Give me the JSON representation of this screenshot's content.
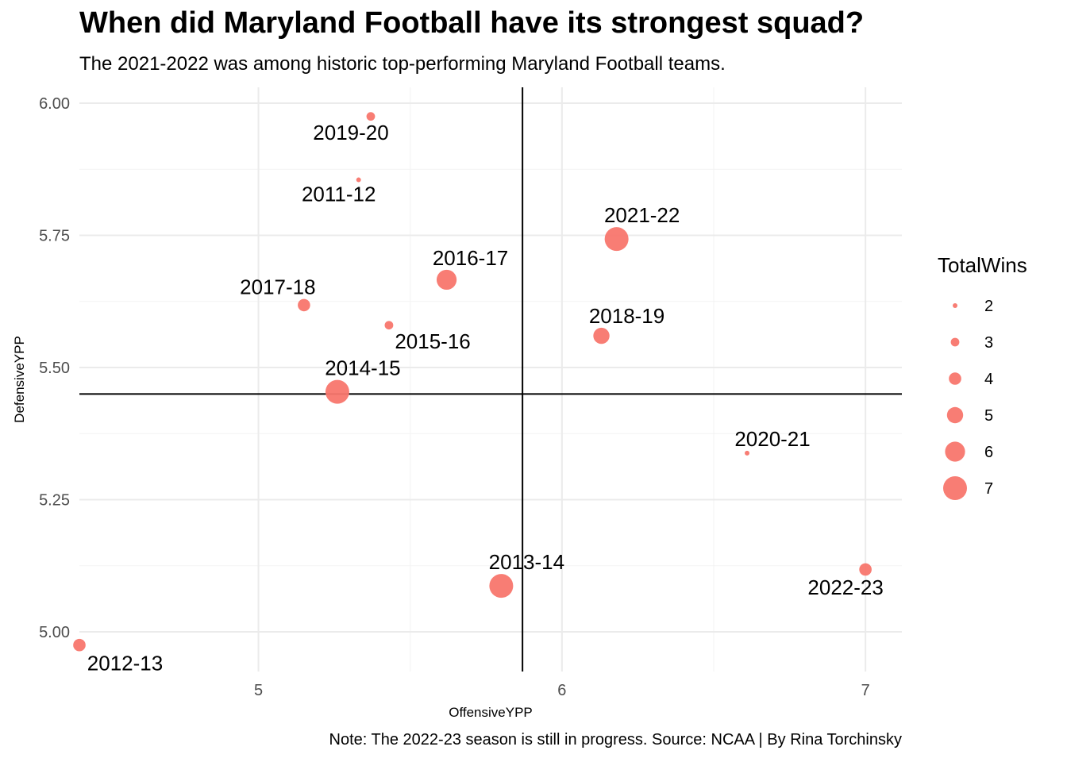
{
  "chart_data": {
    "type": "scatter",
    "title": "When did Maryland Football have its strongest squad?",
    "subtitle": "The 2021-2022 was among historic top-performing Maryland Football teams.",
    "caption": "Note: The 2022-23 season is still in progress. Source: NCAA | By Rina Torchinsky",
    "xlabel": "OffensiveYPP",
    "ylabel": "DefensiveYPP",
    "xlim": [
      4.41,
      7.12
    ],
    "ylim": [
      4.925,
      6.03
    ],
    "x_ticks": [
      5,
      6,
      7
    ],
    "x_tick_labels": [
      "5",
      "6",
      "7"
    ],
    "y_ticks": [
      5.0,
      5.25,
      5.5,
      5.75,
      6.0
    ],
    "y_tick_labels": [
      "5.00",
      "5.25",
      "5.50",
      "5.75",
      "6.00"
    ],
    "grid": true,
    "reference_lines": {
      "x": 5.87,
      "y": 5.45
    },
    "point_color": "#F8766D",
    "size_variable": "TotalWins",
    "legend": {
      "title": "TotalWins",
      "position": "right",
      "values": [
        2,
        3,
        4,
        5,
        6,
        7
      ],
      "labels": [
        "2",
        "3",
        "4",
        "5",
        "6",
        "7"
      ]
    },
    "points": [
      {
        "label": "2011-12",
        "x": 5.33,
        "y": 5.855,
        "wins": 2,
        "label_pos": "below-left"
      },
      {
        "label": "2012-13",
        "x": 4.41,
        "y": 4.975,
        "wins": 4,
        "label_pos": "below-right"
      },
      {
        "label": "2013-14",
        "x": 5.8,
        "y": 5.087,
        "wins": 7,
        "label_pos": "above-right"
      },
      {
        "label": "2014-15",
        "x": 5.26,
        "y": 5.454,
        "wins": 7,
        "label_pos": "above-right"
      },
      {
        "label": "2015-16",
        "x": 5.43,
        "y": 5.58,
        "wins": 3,
        "label_pos": "below-right"
      },
      {
        "label": "2016-17",
        "x": 5.62,
        "y": 5.666,
        "wins": 6,
        "label_pos": "above"
      },
      {
        "label": "2017-18",
        "x": 5.15,
        "y": 5.618,
        "wins": 4,
        "label_pos": "above-left"
      },
      {
        "label": "2018-19",
        "x": 6.13,
        "y": 5.56,
        "wins": 5,
        "label_pos": "above-right"
      },
      {
        "label": "2019-20",
        "x": 5.37,
        "y": 5.975,
        "wins": 3,
        "label_pos": "below-left"
      },
      {
        "label": "2020-21",
        "x": 6.61,
        "y": 5.338,
        "wins": 2,
        "label_pos": "above-right"
      },
      {
        "label": "2021-22",
        "x": 6.18,
        "y": 5.743,
        "wins": 7,
        "label_pos": "above-right"
      },
      {
        "label": "2022-23",
        "x": 7.0,
        "y": 5.118,
        "wins": 4,
        "label_pos": "below-left"
      }
    ]
  }
}
